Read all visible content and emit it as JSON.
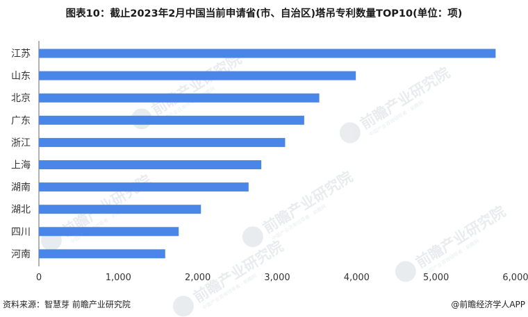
{
  "title": "图表10：截止2023年2月中国当前申请省(市、自治区)塔吊专利数量TOP10(单位：项)",
  "watermark": {
    "text": "前瞻产业研究院",
    "subtext": "中国产业咨询领导者 · 前瞻网",
    "color": "#d8dde3"
  },
  "footer": {
    "source": "资料来源：智慧芽 前瞻产业研究院",
    "credit": "@前瞻经济学人APP"
  },
  "chart_data": {
    "type": "bar",
    "orientation": "horizontal",
    "categories": [
      "江苏",
      "山东",
      "北京",
      "广东",
      "浙江",
      "上海",
      "湖南",
      "湖北",
      "四川",
      "河南"
    ],
    "values": [
      5750,
      3990,
      3530,
      3340,
      3100,
      2800,
      2640,
      2040,
      1760,
      1590
    ],
    "xlim": [
      0,
      6000
    ],
    "xticks": [
      0,
      1000,
      2000,
      3000,
      4000,
      5000,
      6000
    ],
    "xtick_labels": [
      "0",
      "1,000",
      "2,000",
      "3,000",
      "4,000",
      "5,000",
      "6,000"
    ],
    "bar_color": "#4a86e8",
    "grid": false,
    "legend": "none"
  }
}
